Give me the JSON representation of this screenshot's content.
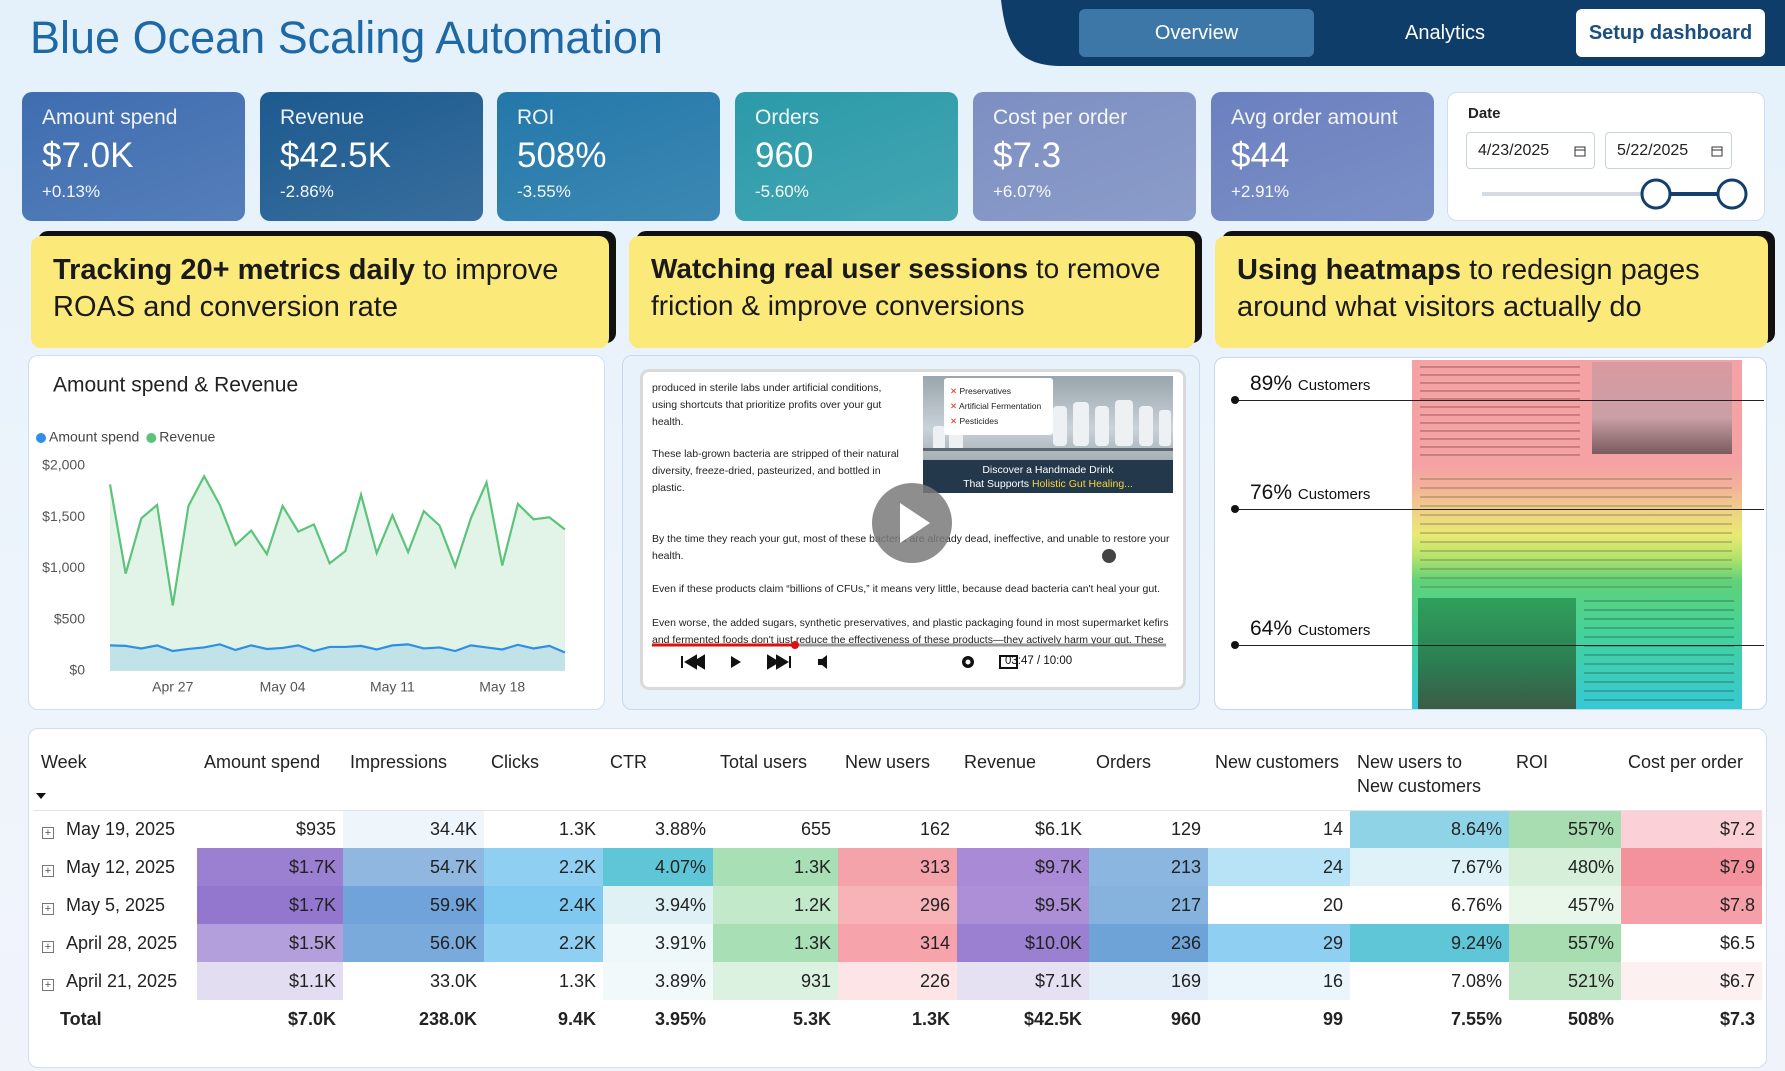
{
  "header": {
    "title": "Blue Ocean Scaling Automation",
    "nav": [
      "Overview",
      "Analytics",
      "Setup dashboard"
    ]
  },
  "kpis": [
    {
      "label": "Amount spend",
      "value": "$7.0K",
      "change": "+0.13%",
      "color": "#3f6db0"
    },
    {
      "label": "Revenue",
      "value": "$42.5K",
      "change": "-2.86%",
      "color": "#1d5a8f"
    },
    {
      "label": "ROI",
      "value": "508%",
      "change": "-3.55%",
      "color": "#2378a9"
    },
    {
      "label": "Orders",
      "value": "960",
      "change": "-5.60%",
      "color": "#2b9aa8"
    },
    {
      "label": "Cost per order",
      "value": "$7.3",
      "change": "+6.07%",
      "color": "#7d8fc2"
    },
    {
      "label": "Avg order amount",
      "value": "$44",
      "change": "+2.91%",
      "color": "#6b80bf"
    }
  ],
  "date_filter": {
    "label": "Date",
    "start": "4/23/2025",
    "end": "5/22/2025"
  },
  "banners": [
    {
      "bold": "Tracking 20+ metrics daily",
      "rest": "to improve ROAS and conversion rate"
    },
    {
      "bold": "Watching real user sessions",
      "rest": "to remove friction & improve conversions"
    },
    {
      "bold": "Using heatmaps",
      "rest": "to redesign pages around what visitors actually do"
    }
  ],
  "chart_data": {
    "type": "area",
    "title": "Amount spend & Revenue",
    "x": [
      "Apr 23",
      "Apr 24",
      "Apr 25",
      "Apr 26",
      "Apr 27",
      "Apr 28",
      "Apr 29",
      "Apr 30",
      "May 01",
      "May 02",
      "May 03",
      "May 04",
      "May 05",
      "May 06",
      "May 07",
      "May 08",
      "May 09",
      "May 10",
      "May 11",
      "May 12",
      "May 13",
      "May 14",
      "May 15",
      "May 16",
      "May 17",
      "May 18",
      "May 19",
      "May 20",
      "May 21",
      "May 22"
    ],
    "xticks": [
      "Apr 27",
      "May 04",
      "May 11",
      "May 18"
    ],
    "series": [
      {
        "name": "Amount spend",
        "color": "#2e8fe6",
        "values": [
          250,
          245,
          220,
          250,
          195,
          215,
          230,
          260,
          205,
          250,
          215,
          225,
          250,
          195,
          235,
          235,
          245,
          210,
          250,
          260,
          220,
          230,
          195,
          250,
          230,
          210,
          255,
          220,
          245,
          180
        ]
      },
      {
        "name": "Revenue",
        "color": "#5cc47a",
        "values": [
          1820,
          950,
          1490,
          1620,
          640,
          1610,
          1900,
          1620,
          1230,
          1370,
          1140,
          1610,
          1360,
          1430,
          1050,
          1170,
          1720,
          1150,
          1520,
          1160,
          1560,
          1420,
          1020,
          1490,
          1840,
          1030,
          1630,
          1480,
          1500,
          1380
        ]
      }
    ],
    "ylim": [
      0,
      2000
    ],
    "yticks": [
      {
        "value": 0,
        "label": "$0"
      },
      {
        "value": 500,
        "label": "$500"
      },
      {
        "value": 1000,
        "label": "$1,000"
      },
      {
        "value": 1500,
        "label": "$1,500"
      },
      {
        "value": 2000,
        "label": "$2,000"
      }
    ],
    "grid": false
  },
  "video": {
    "paragraphs": [
      "produced in sterile labs under artificial conditions, using shortcuts that prioritize profits over your gut health.",
      "These lab-grown bacteria are stripped of their natural diversity, freeze-dried, pasteurized, and bottled in plastic.",
      "By the time they reach your gut, most of these bacteria are already dead, ineffective, and unable to restore your health.",
      "Even if these products claim “billions of CFUs,” it means very little, because dead bacteria can't heal your gut.",
      "Even worse, the added sugars, synthetic preservatives, and plastic packaging found in most supermarket kefirs and fermented foods don't just reduce the effectiveness of these products—they actively harm your gut. These"
    ],
    "checklist": [
      "Preservatives",
      "Artificial Fermentation",
      "Pesticides"
    ],
    "caption_line1": "Discover a Handmade Drink",
    "caption_prefix": "That Supports",
    "caption_highlight": "Holistic Gut Healing...",
    "time": "03:47 / 10:00"
  },
  "heatmap": {
    "markers": [
      {
        "percent": "89%",
        "label": "Customers"
      },
      {
        "percent": "76%",
        "label": "Customers"
      },
      {
        "percent": "64%",
        "label": "Customers"
      }
    ]
  },
  "table": {
    "headers": [
      "Week",
      "Amount spend",
      "Impressions",
      "Clicks",
      "CTR",
      "Total users",
      "New users",
      "Revenue",
      "Orders",
      "New customers",
      "New users to New customers",
      "ROI",
      "Cost per order"
    ],
    "rows": [
      {
        "cells": [
          "May 19, 2025",
          "$935",
          "34.4K",
          "1.3K",
          "3.88%",
          "655",
          "162",
          "$6.1K",
          "129",
          "14",
          "8.64%",
          "557%",
          "$7.2"
        ],
        "fills": [
          "#ffffff",
          "#ffffff",
          "#eef5fb",
          "#ffffff",
          "#ffffff",
          "#ffffff",
          "#ffffff",
          "#ffffff",
          "#ffffff",
          "#ffffff",
          "#8fd3e6",
          "#a8dcb1",
          "#fbd0d6"
        ]
      },
      {
        "cells": [
          "May 12, 2025",
          "$1.7K",
          "54.7K",
          "2.2K",
          "4.07%",
          "1.3K",
          "313",
          "$9.7K",
          "213",
          "24",
          "7.67%",
          "480%",
          "$7.9"
        ],
        "fills": [
          "#ffffff",
          "#9b7fd1",
          "#8fb7e0",
          "#8fd0f2",
          "#5ec6d6",
          "#a9dfb5",
          "#f5a3ab",
          "#a98ad6",
          "#8bb6e0",
          "#b8e3f7",
          "#def2f7",
          "#d5efd8",
          "#f3929c"
        ]
      },
      {
        "cells": [
          "May 5, 2025",
          "$1.7K",
          "59.9K",
          "2.4K",
          "3.94%",
          "1.2K",
          "296",
          "$9.5K",
          "217",
          "20",
          "6.76%",
          "457%",
          "$7.8"
        ],
        "fills": [
          "#ffffff",
          "#9377cf",
          "#6fa3d9",
          "#7fc9f0",
          "#dff1f4",
          "#c3e9cb",
          "#f8b3b9",
          "#ad8fd8",
          "#86b3de",
          "#ffffff",
          "#ffffff",
          "#e9f6ea",
          "#f5a0a8"
        ]
      },
      {
        "cells": [
          "April 28, 2025",
          "$1.5K",
          "56.0K",
          "2.2K",
          "3.91%",
          "1.3K",
          "314",
          "$10.0K",
          "236",
          "29",
          "9.24%",
          "557%",
          "$6.5"
        ],
        "fills": [
          "#ffffff",
          "#b29fdc",
          "#7aa9db",
          "#8fd0f2",
          "#eef7f9",
          "#a9dfb5",
          "#f6a3ab",
          "#9b7fd1",
          "#6ea3d8",
          "#8fd0f2",
          "#5ec6d6",
          "#a8dcb1",
          "#ffffff"
        ]
      },
      {
        "cells": [
          "April 21, 2025",
          "$1.1K",
          "33.0K",
          "1.3K",
          "3.89%",
          "931",
          "226",
          "$7.1K",
          "169",
          "16",
          "7.08%",
          "521%",
          "$6.7"
        ],
        "fills": [
          "#ffffff",
          "#e3ddf2",
          "#ffffff",
          "#ffffff",
          "#f2f9fb",
          "#dcf2e0",
          "#fde5e7",
          "#e6e0f3",
          "#e4eef8",
          "#eaf6fc",
          "#ffffff",
          "#c2e7c7",
          "#fdf0f1"
        ]
      }
    ],
    "total": [
      "Total",
      "$7.0K",
      "238.0K",
      "9.4K",
      "3.95%",
      "5.3K",
      "1.3K",
      "$42.5K",
      "960",
      "99",
      "7.55%",
      "508%",
      "$7.3"
    ]
  }
}
